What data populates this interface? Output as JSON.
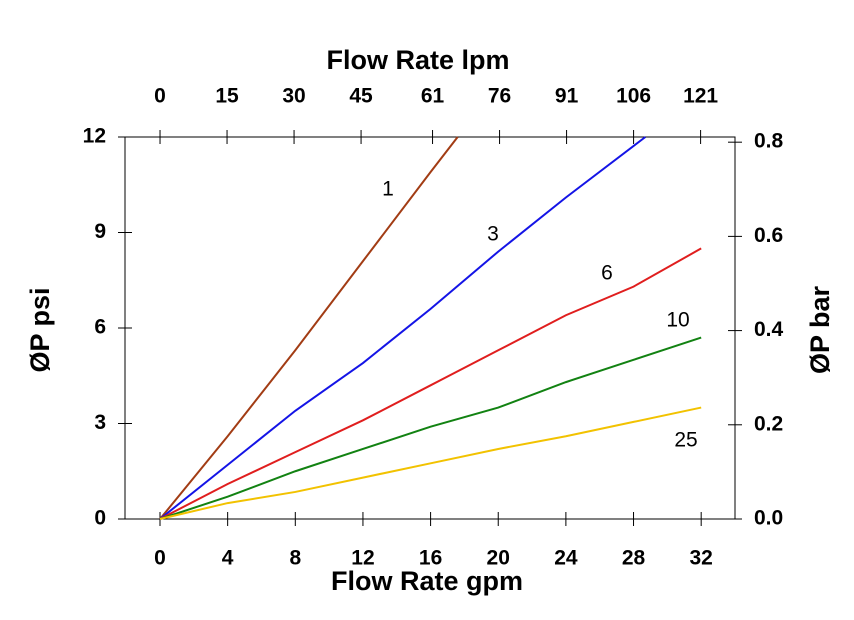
{
  "chart_data": {
    "type": "line",
    "x_label": "Flow Rate gpm",
    "x2_label": "Flow Rate lpm",
    "y_label": "ØP psi",
    "y2_label": "ØP bar",
    "xlim": [
      -2.07,
      34.0
    ],
    "xticks": [
      0,
      4,
      8,
      12,
      16,
      20,
      24,
      28,
      32
    ],
    "x2lim": [
      -7.84,
      128.7
    ],
    "x2ticks": [
      0,
      15,
      30,
      45,
      61,
      76,
      91,
      106,
      121
    ],
    "ylim": [
      0,
      12
    ],
    "yticks": [
      0,
      3,
      6,
      9,
      12
    ],
    "y2lim": [
      0,
      0.811
    ],
    "y2ticks": [
      {
        "value": 0,
        "label": "0.0"
      },
      0.2,
      0.4,
      0.6,
      {
        "value": 0.8,
        "label": "0.8"
      }
    ],
    "series": [
      {
        "name": "1",
        "color": "#a23c14",
        "x": [
          0,
          4,
          8,
          12,
          16,
          17.6
        ],
        "values": [
          0,
          2.6,
          5.3,
          8.1,
          10.9,
          12
        ]
      },
      {
        "name": "3",
        "color": "#1414e6",
        "x": [
          0,
          4,
          8,
          12,
          16,
          20,
          24,
          28.7
        ],
        "values": [
          0,
          1.7,
          3.4,
          4.9,
          6.6,
          8.4,
          10.1,
          12
        ]
      },
      {
        "name": "6",
        "color": "#e01e1e",
        "x": [
          0,
          4,
          8,
          12,
          16,
          20,
          24,
          28,
          32
        ],
        "values": [
          0,
          1.1,
          2.1,
          3.1,
          4.2,
          5.3,
          6.4,
          7.3,
          8.5
        ]
      },
      {
        "name": "10",
        "color": "#128212",
        "x": [
          0,
          4,
          8,
          12,
          16,
          20,
          24,
          28,
          32
        ],
        "values": [
          0,
          0.7,
          1.5,
          2.2,
          2.9,
          3.5,
          4.3,
          5.0,
          5.7
        ]
      },
      {
        "name": "25",
        "color": "#f2c200",
        "x": [
          0,
          4,
          8,
          12,
          16,
          20,
          24,
          28,
          32
        ],
        "values": [
          0,
          0.5,
          0.85,
          1.3,
          1.75,
          2.2,
          2.6,
          3.05,
          3.5
        ]
      }
    ]
  }
}
